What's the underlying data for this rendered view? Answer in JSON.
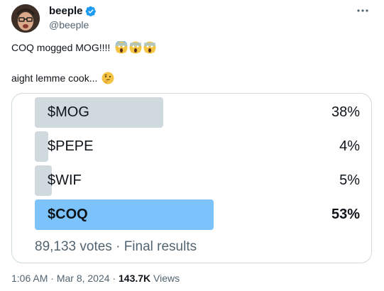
{
  "author": {
    "display_name": "beeple",
    "handle": "@beeple",
    "avatar_icon": "avatar-face-icon",
    "verified_icon": "verified-badge-icon",
    "verified_color": "#1d9bf0"
  },
  "more_icon": "more-horizontal-icon",
  "tweet": {
    "line1": "COQ mogged MOG!!!!",
    "line1_emoji": [
      "screaming-face-emoji",
      "screaming-face-emoji",
      "screaming-face-emoji"
    ],
    "line2": "aight lemme cook...",
    "line2_emoji": "thinking-face-emoji"
  },
  "poll": {
    "options": [
      {
        "label": "$MOG",
        "percent_text": "38%",
        "percent": 38,
        "winner": false
      },
      {
        "label": "$PEPE",
        "percent_text": "4%",
        "percent": 4,
        "winner": false
      },
      {
        "label": "$WIF",
        "percent_text": "5%",
        "percent": 5,
        "winner": false
      },
      {
        "label": "$COQ",
        "percent_text": "53%",
        "percent": 53,
        "winner": true
      }
    ],
    "footer": "89,133 votes · Final results",
    "bar_color": "#cfd9de",
    "winner_color": "#7cc3fb"
  },
  "meta": {
    "time": "1:06 AM",
    "sep1": " · ",
    "date": "Mar 8, 2024",
    "sep2": " · ",
    "views_count": "143.7K",
    "views_label": " Views"
  }
}
